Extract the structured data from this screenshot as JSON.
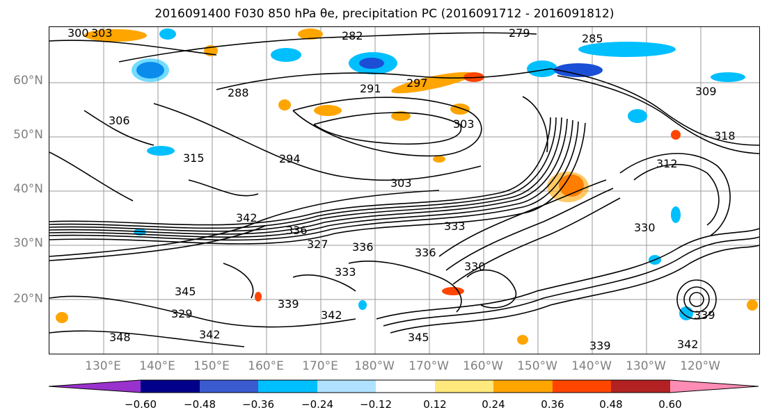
{
  "title": "2016091400 F030 850 hPa θe, precipitation PC (2016091712 - 2016091812)",
  "latitude_labels": [
    "60°N",
    "50°N",
    "40°N",
    "30°N",
    "20°N"
  ],
  "longitude_labels": [
    "130°E",
    "140°E",
    "150°E",
    "160°E",
    "170°E",
    "180°W",
    "170°W",
    "160°W",
    "150°W",
    "140°W",
    "130°W",
    "120°W"
  ],
  "contour_labels": [
    "300",
    "303",
    "282",
    "279",
    "285",
    "288",
    "291",
    "294",
    "297",
    "306",
    "309",
    "312",
    "315",
    "318",
    "303",
    "303",
    "333",
    "336",
    "336",
    "336",
    "342",
    "342",
    "345",
    "345",
    "348",
    "339",
    "339",
    "342",
    "339",
    "342",
    "327",
    "333",
    "330",
    "330",
    "329"
  ],
  "colorbar": {
    "ticks": [
      "−0.60",
      "−0.48",
      "−0.36",
      "−0.24",
      "−0.12",
      "0.12",
      "0.24",
      "0.36",
      "0.48",
      "0.60"
    ],
    "colors": [
      "#9932cc",
      "#00008b",
      "#3a5bd0",
      "#00bfff",
      "#b0e2ff",
      "#ffffff",
      "#ffe87c",
      "#ffa500",
      "#ff4500",
      "#b22222",
      "#ff8cb4"
    ]
  },
  "field_colors": {
    "negative_strong": "#1a4fd6",
    "negative": "#00bfff",
    "negative_weak": "#b0e2ff",
    "positive_weak": "#ffe87c",
    "positive": "#ffa500",
    "positive_strong": "#ff4500"
  }
}
